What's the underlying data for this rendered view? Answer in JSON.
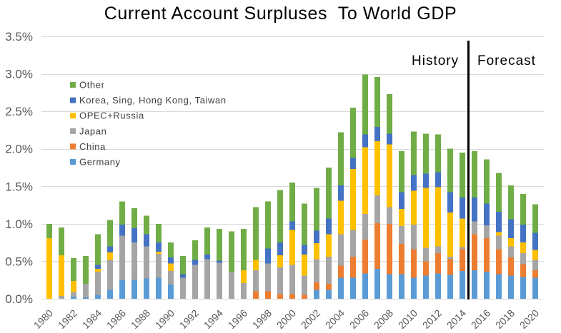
{
  "chart_data": {
    "type": "bar",
    "stacked": true,
    "title": "Current Account Surpluses  To World GDP",
    "x": [
      1980,
      1981,
      1982,
      1983,
      1984,
      1985,
      1986,
      1987,
      1988,
      1989,
      1990,
      1991,
      1992,
      1993,
      1994,
      1995,
      1996,
      1997,
      1998,
      1999,
      2000,
      2001,
      2002,
      2003,
      2004,
      2005,
      2006,
      2007,
      2008,
      2009,
      2010,
      2011,
      2012,
      2013,
      2014,
      2015,
      2016,
      2017,
      2018,
      2019,
      2020
    ],
    "x_tick_labels": [
      "1980",
      "1982",
      "1984",
      "1986",
      "1988",
      "1990",
      "1992",
      "1994",
      "1996",
      "1998",
      "2000",
      "2002",
      "2004",
      "2006",
      "2008",
      "2010",
      "2012",
      "2014",
      "2016",
      "2018",
      "2020"
    ],
    "y_ticks": [
      0,
      0.5,
      1,
      1.5,
      2,
      2.5,
      3,
      3.5
    ],
    "y_tick_labels": [
      "0.0%",
      "0.5%",
      "1.0%",
      "1.5%",
      "2.0%",
      "2.5%",
      "3.0%",
      "3.5%"
    ],
    "ylim": [
      0,
      3.5
    ],
    "grid": true,
    "legend_position": "top-left",
    "forecast_start": 2015,
    "period_labels": {
      "history": "History",
      "forecast": "Forecast"
    },
    "series": [
      {
        "name": "Germany",
        "color": "#5b9bd5",
        "values": [
          0,
          0,
          0.03,
          0.02,
          0.05,
          0.12,
          0.25,
          0.25,
          0.27,
          0.28,
          0.19,
          0,
          0,
          0,
          0,
          0,
          0,
          0,
          0,
          0,
          0,
          0,
          0.12,
          0.12,
          0.28,
          0.28,
          0.34,
          0.4,
          0.33,
          0.33,
          0.28,
          0.31,
          0.34,
          0.32,
          0.37,
          0.38,
          0.36,
          0.33,
          0.31,
          0.29,
          0.28
        ]
      },
      {
        "name": "China",
        "color": "#ed7d31",
        "values": [
          0,
          0,
          0,
          0,
          0,
          0,
          0,
          0,
          0,
          0,
          0,
          0,
          0,
          0,
          0,
          0,
          0,
          0.1,
          0.1,
          0.06,
          0.06,
          0.05,
          0.1,
          0.08,
          0.16,
          0.28,
          0.45,
          0.61,
          0.67,
          0.4,
          0.38,
          0.19,
          0.27,
          0.21,
          0.29,
          0.48,
          0.45,
          0.33,
          0.24,
          0.17,
          0.1
        ]
      },
      {
        "name": "Japan",
        "color": "#a5a5a5",
        "values": [
          0,
          0.04,
          0.06,
          0.18,
          0.31,
          0.4,
          0.59,
          0.5,
          0.43,
          0.32,
          0.18,
          0.28,
          0.45,
          0.53,
          0.48,
          0.36,
          0.21,
          0.28,
          0.37,
          0.36,
          0.39,
          0.26,
          0.31,
          0.36,
          0.42,
          0.36,
          0.34,
          0.37,
          0.22,
          0.24,
          0.33,
          0.18,
          0.09,
          0.03,
          0.03,
          0.17,
          0.17,
          0.18,
          0.15,
          0.15,
          0.14
        ]
      },
      {
        "name": "OPEC+Russia",
        "color": "#ffc000",
        "values": [
          0.81,
          0.54,
          0.15,
          0,
          0.04,
          0.1,
          0,
          0,
          0,
          0.03,
          0.1,
          0,
          0,
          0,
          0,
          0,
          0.17,
          0.14,
          0,
          0.16,
          0.47,
          0.28,
          0.21,
          0.3,
          0.45,
          0.81,
          0.89,
          0.72,
          0.84,
          0.23,
          0.45,
          0.8,
          0.79,
          0.59,
          0.38,
          0,
          0,
          0.05,
          0.11,
          0.14,
          0.13
        ]
      },
      {
        "name": "Korea, Sing, Hong Kong, Taiwan",
        "color": "#4472c4",
        "values": [
          0,
          0,
          0,
          0,
          0.05,
          0.08,
          0.15,
          0.19,
          0.16,
          0.12,
          0.08,
          0.05,
          0.07,
          0.06,
          0.03,
          0,
          0,
          0,
          0.2,
          0.17,
          0.11,
          0.13,
          0.17,
          0.21,
          0.2,
          0.15,
          0.17,
          0.19,
          0.14,
          0.22,
          0.21,
          0.19,
          0.2,
          0.27,
          0.28,
          0.32,
          0.29,
          0.27,
          0.25,
          0.24,
          0.23
        ]
      },
      {
        "name": "Other",
        "color": "#70ad47",
        "values": [
          0.19,
          0.37,
          0.3,
          0.37,
          0.41,
          0.35,
          0.31,
          0.27,
          0.25,
          0.25,
          0.2,
          0.24,
          0.26,
          0.36,
          0.42,
          0.54,
          0.55,
          0.7,
          0.63,
          0.7,
          0.52,
          0.55,
          0.57,
          0.68,
          0.71,
          0.67,
          0.8,
          0.67,
          0.53,
          0.55,
          0.58,
          0.53,
          0.5,
          0.58,
          0.6,
          0.62,
          0.59,
          0.52,
          0.45,
          0.41,
          0.38
        ]
      }
    ]
  }
}
